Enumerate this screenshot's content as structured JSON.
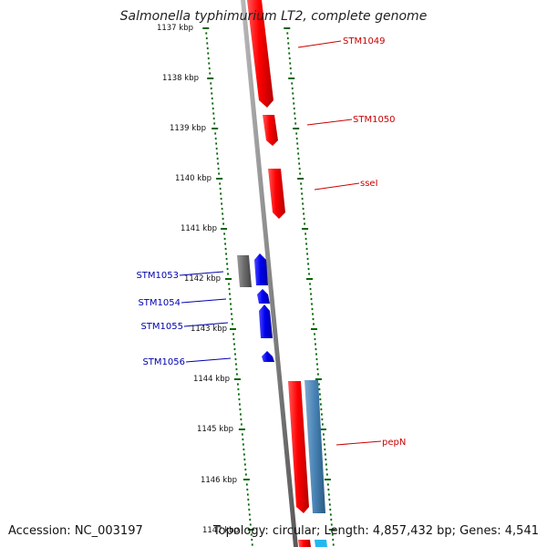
{
  "title": "Salmonella typhimurium LT2, complete genome",
  "accession": "Accession: NC_003197",
  "topology": "Topology: circular; Length: 4,857,432 bp; Genes: 4,541",
  "ticks": [
    "1137 kbp",
    "1138 kbp",
    "1139 kbp",
    "1140 kbp",
    "1141 kbp",
    "1142 kbp",
    "1143 kbp",
    "1144 kbp",
    "1145 kbp",
    "1146 kbp",
    "1147 kbp"
  ],
  "genes": [
    {
      "name": "STM1049",
      "strand": "forward",
      "color": "#ff0000"
    },
    {
      "name": "STM1050",
      "strand": "forward",
      "color": "#ff0000"
    },
    {
      "name": "sseI",
      "strand": "forward",
      "color": "#ff0000"
    },
    {
      "name": "STM1053",
      "strand": "reverse",
      "color": "#0000ee"
    },
    {
      "name": "STM1054",
      "strand": "reverse",
      "color": "#0000ee"
    },
    {
      "name": "STM1055",
      "strand": "reverse",
      "color": "#0000ee"
    },
    {
      "name": "STM1056",
      "strand": "reverse",
      "color": "#0000ee"
    },
    {
      "name": "pepN",
      "strand": "forward",
      "color": "#ff0000"
    }
  ],
  "colors": {
    "backbone": "#888888",
    "ruler": "#006600",
    "forward_gene": "#ff0000",
    "reverse_gene": "#0000ee",
    "pseudo_gene": "#666666",
    "cds_feature": "#4682b4",
    "cds_feature_light": "#00bfff"
  }
}
